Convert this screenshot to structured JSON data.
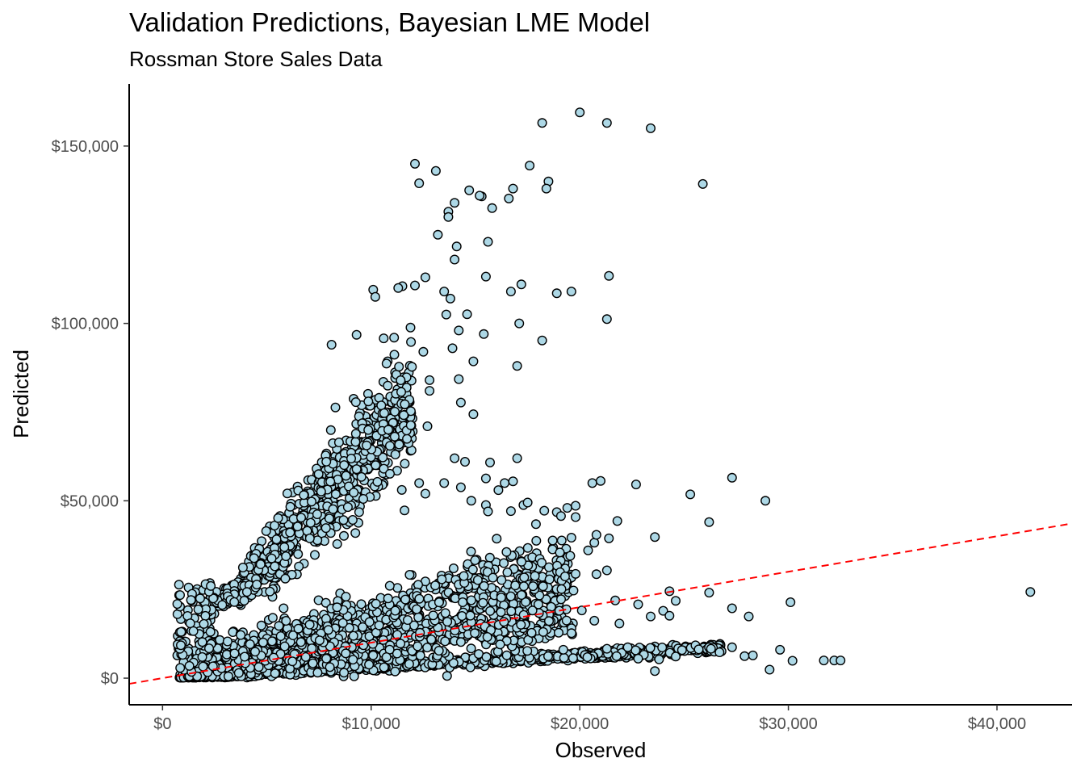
{
  "chart_data": {
    "type": "scatter",
    "title": "Validation Predictions, Bayesian LME Model",
    "subtitle": "Rossman Store Sales Data",
    "xlabel": "Observed",
    "ylabel": "Predicted",
    "xlim": [
      -1600,
      43600
    ],
    "ylim": [
      -7500,
      167500
    ],
    "x_ticks": [
      0,
      10000,
      20000,
      30000,
      40000
    ],
    "x_tick_labels": [
      "$0",
      "$10,000",
      "$20,000",
      "$30,000",
      "$40,000"
    ],
    "y_ticks": [
      0,
      50000,
      100000,
      150000
    ],
    "y_tick_labels": [
      "$0",
      "$50,000",
      "$100,000",
      "$150,000"
    ],
    "grid": false,
    "legend": "none",
    "reference_line": {
      "type": "identity",
      "slope": 1,
      "intercept": 0,
      "style": "dashed",
      "color": "#ff0000"
    },
    "marker": {
      "fill": "#add8e6",
      "stroke": "#000000",
      "shape": "circle"
    },
    "points": [
      [
        20000,
        159500
      ],
      [
        18200,
        156500
      ],
      [
        21300,
        156500
      ],
      [
        23400,
        155000
      ],
      [
        12100,
        145000
      ],
      [
        13100,
        143000
      ],
      [
        17600,
        144500
      ],
      [
        12300,
        139500
      ],
      [
        18500,
        140000
      ],
      [
        25900,
        139300
      ],
      [
        18400,
        138000
      ],
      [
        16800,
        138000
      ],
      [
        14700,
        137500
      ],
      [
        15300,
        135800
      ],
      [
        15200,
        136000
      ],
      [
        16600,
        135200
      ],
      [
        14000,
        134000
      ],
      [
        13700,
        131500
      ],
      [
        13700,
        130000
      ],
      [
        15800,
        132500
      ],
      [
        13200,
        125000
      ],
      [
        15600,
        123000
      ],
      [
        14100,
        121700
      ],
      [
        14000,
        118000
      ],
      [
        15500,
        113200
      ],
      [
        21400,
        113400
      ],
      [
        12600,
        113000
      ],
      [
        11500,
        110500
      ],
      [
        13500,
        109000
      ],
      [
        10100,
        109500
      ],
      [
        17200,
        111000
      ],
      [
        10200,
        107500
      ],
      [
        19600,
        109000
      ],
      [
        18900,
        108500
      ],
      [
        16700,
        109000
      ],
      [
        12100,
        110700
      ],
      [
        11300,
        110000
      ],
      [
        13800,
        107000
      ],
      [
        21300,
        101200
      ],
      [
        17100,
        100000
      ],
      [
        14200,
        98000
      ],
      [
        15400,
        97000
      ],
      [
        9300,
        96800
      ],
      [
        8100,
        94000
      ],
      [
        10600,
        95800
      ],
      [
        11100,
        96000
      ],
      [
        14600,
        102600
      ],
      [
        13600,
        102500
      ],
      [
        18200,
        95200
      ],
      [
        13900,
        93000
      ],
      [
        12500,
        92000
      ],
      [
        14900,
        89300
      ],
      [
        17000,
        88000
      ],
      [
        12800,
        84000
      ],
      [
        14200,
        84300
      ],
      [
        12800,
        81000
      ],
      [
        14300,
        77700
      ],
      [
        14900,
        74400
      ],
      [
        12700,
        71000
      ],
      [
        11900,
        71300
      ],
      [
        10900,
        65500
      ],
      [
        14000,
        62000
      ],
      [
        15700,
        60800
      ],
      [
        14500,
        61000
      ],
      [
        17000,
        62000
      ],
      [
        16400,
        55000
      ],
      [
        16800,
        55500
      ],
      [
        20600,
        55000
      ],
      [
        21000,
        55600
      ],
      [
        22700,
        54600
      ],
      [
        25300,
        51800
      ],
      [
        27300,
        56500
      ],
      [
        28900,
        50000
      ],
      [
        26200,
        44000
      ],
      [
        23600,
        39800
      ],
      [
        21800,
        44300
      ],
      [
        20700,
        38200
      ],
      [
        15500,
        56300
      ],
      [
        16100,
        53000
      ],
      [
        13500,
        55000
      ],
      [
        14300,
        53800
      ],
      [
        10900,
        57600
      ],
      [
        12300,
        55000
      ],
      [
        12600,
        52000
      ],
      [
        11600,
        47300
      ],
      [
        14800,
        50000
      ],
      [
        15500,
        48800
      ],
      [
        17300,
        48800
      ],
      [
        15600,
        47000
      ],
      [
        16700,
        47100
      ],
      [
        17500,
        49500
      ],
      [
        18300,
        47200
      ],
      [
        18900,
        46800
      ],
      [
        19400,
        48000
      ],
      [
        19800,
        48600
      ],
      [
        19800,
        45400
      ],
      [
        19100,
        45700
      ],
      [
        17900,
        43400
      ],
      [
        20800,
        40400
      ],
      [
        21400,
        39400
      ],
      [
        20400,
        36000
      ],
      [
        18700,
        38800
      ],
      [
        19600,
        39600
      ],
      [
        21300,
        30400
      ],
      [
        20800,
        29300
      ],
      [
        19800,
        29400
      ],
      [
        24600,
        21800
      ],
      [
        26200,
        24100
      ],
      [
        27300,
        19700
      ],
      [
        30100,
        21400
      ],
      [
        28100,
        17400
      ],
      [
        29600,
        8000
      ],
      [
        28300,
        6400
      ],
      [
        29100,
        2400
      ],
      [
        30200,
        4900
      ],
      [
        31700,
        5000
      ],
      [
        32200,
        5000
      ],
      [
        32500,
        5000
      ],
      [
        41600,
        24300
      ],
      [
        24300,
        24500
      ],
      [
        22800,
        20800
      ],
      [
        20700,
        16200
      ],
      [
        21900,
        15400
      ],
      [
        20100,
        19100
      ],
      [
        21700,
        21900
      ],
      [
        24000,
        19000
      ],
      [
        24300,
        17600
      ],
      [
        23400,
        17400
      ],
      [
        23800,
        5300
      ],
      [
        24600,
        6100
      ],
      [
        22800,
        5500
      ],
      [
        23600,
        2000
      ],
      [
        25700,
        8100
      ],
      [
        26700,
        7300
      ],
      [
        27300,
        8700
      ],
      [
        27900,
        6200
      ],
      [
        24900,
        7900
      ],
      [
        22300,
        8700
      ],
      [
        21300,
        8300
      ]
    ]
  }
}
